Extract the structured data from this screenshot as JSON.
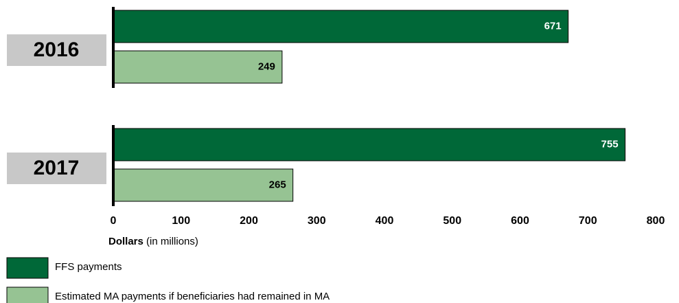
{
  "chart_data": {
    "type": "bar",
    "orientation": "horizontal",
    "categories": [
      "2016",
      "2017"
    ],
    "series": [
      {
        "name": "FFS payments",
        "color": "#006838",
        "label_color": "#ffffff",
        "values": [
          671,
          755
        ]
      },
      {
        "name": "Estimated MA payments if beneficiaries had remained in MA",
        "color": "#96c393",
        "label_color": "#000000",
        "values": [
          249,
          265
        ]
      }
    ],
    "xlabel": "Dollars",
    "xlabel_unit": "(in millions)",
    "xlim": [
      0,
      800
    ],
    "xticks": [
      0,
      100,
      200,
      300,
      400,
      500,
      600,
      700,
      800
    ],
    "grid": false
  }
}
